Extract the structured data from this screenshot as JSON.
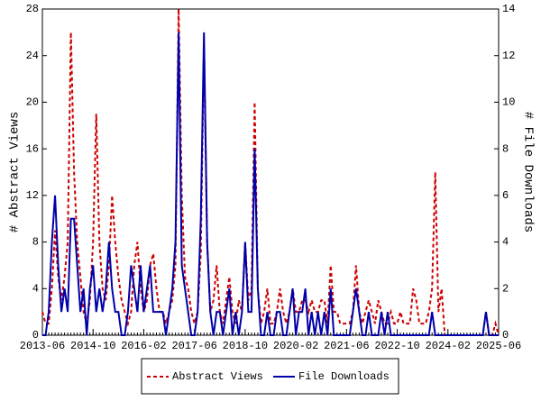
{
  "chart_data": {
    "type": "line",
    "x": [
      "2013-06",
      "2013-07",
      "2013-08",
      "2013-09",
      "2013-10",
      "2013-11",
      "2013-12",
      "2014-01",
      "2014-02",
      "2014-03",
      "2014-04",
      "2014-05",
      "2014-06",
      "2014-07",
      "2014-08",
      "2014-09",
      "2014-10",
      "2014-11",
      "2014-12",
      "2015-01",
      "2015-02",
      "2015-03",
      "2015-04",
      "2015-05",
      "2015-06",
      "2015-07",
      "2015-08",
      "2015-09",
      "2015-10",
      "2015-11",
      "2015-12",
      "2016-01",
      "2016-02",
      "2016-03",
      "2016-04",
      "2016-05",
      "2016-06",
      "2016-07",
      "2016-08",
      "2016-09",
      "2016-10",
      "2016-11",
      "2016-12",
      "2017-01",
      "2017-02",
      "2017-03",
      "2017-04",
      "2017-05",
      "2017-06",
      "2017-07",
      "2017-08",
      "2017-09",
      "2017-10",
      "2017-11",
      "2017-12",
      "2018-01",
      "2018-02",
      "2018-03",
      "2018-04",
      "2018-05",
      "2018-06",
      "2018-07",
      "2018-08",
      "2018-09",
      "2018-10",
      "2018-11",
      "2018-12",
      "2019-01",
      "2019-02",
      "2019-03",
      "2019-04",
      "2019-05",
      "2019-06",
      "2019-07",
      "2019-08",
      "2019-09",
      "2019-10",
      "2019-11",
      "2019-12",
      "2020-01",
      "2020-02",
      "2020-03",
      "2020-04",
      "2020-05",
      "2020-06",
      "2020-07",
      "2020-08",
      "2020-09",
      "2020-10",
      "2020-11",
      "2020-12",
      "2021-01",
      "2021-02",
      "2021-03",
      "2021-04",
      "2021-05",
      "2021-06",
      "2021-07",
      "2021-08",
      "2021-09",
      "2021-10",
      "2021-11",
      "2021-12",
      "2022-01",
      "2022-02",
      "2022-03",
      "2022-04",
      "2022-05",
      "2022-06",
      "2022-07",
      "2022-08",
      "2022-09",
      "2022-10",
      "2022-11",
      "2022-12",
      "2023-01",
      "2023-02",
      "2023-03",
      "2023-04",
      "2023-05",
      "2023-06",
      "2023-07",
      "2023-08",
      "2023-09",
      "2023-10",
      "2023-11",
      "2023-12",
      "2024-01",
      "2024-02",
      "2024-03",
      "2024-04",
      "2024-05",
      "2024-06",
      "2024-07",
      "2024-08",
      "2024-09",
      "2024-10",
      "2024-11",
      "2024-12",
      "2025-01",
      "2025-02",
      "2025-03",
      "2025-04",
      "2025-05",
      "2025-06"
    ],
    "xticks": [
      "2013-06",
      "2014-10",
      "2016-02",
      "2017-06",
      "2018-10",
      "2020-02",
      "2021-06",
      "2022-10",
      "2024-02",
      "2025-06"
    ],
    "ylabel": "# Abstract Views",
    "y2label": "# File Downloads",
    "ylim": [
      0,
      28
    ],
    "yticks": [
      0,
      4,
      8,
      12,
      16,
      20,
      24,
      28
    ],
    "y2lim": [
      0,
      14
    ],
    "y2ticks": [
      0,
      2,
      4,
      6,
      8,
      10,
      12,
      14
    ],
    "series": [
      {
        "name": "Abstract Views",
        "color": "#cc0000",
        "dashed": true,
        "axis": "y",
        "values": [
          2,
          1,
          1,
          4,
          9,
          5,
          3,
          5,
          8,
          26,
          14,
          8,
          5,
          2,
          1,
          3,
          8,
          19,
          8,
          4,
          3,
          6,
          12,
          8,
          5,
          3,
          2,
          1,
          2,
          6,
          8,
          4,
          2,
          3,
          6,
          7,
          4,
          2,
          2,
          1,
          2,
          3,
          6,
          28,
          12,
          5,
          4,
          2,
          1,
          2,
          7,
          25,
          8,
          2,
          3,
          6,
          2,
          1,
          3,
          5,
          2,
          1,
          3,
          2,
          8,
          3,
          4,
          20,
          4,
          1,
          2,
          4,
          1,
          1,
          2,
          4,
          2,
          1,
          2,
          4,
          2,
          2,
          3,
          3,
          2,
          3,
          2,
          2,
          3,
          3,
          1,
          6,
          2,
          2,
          1,
          1,
          1,
          1,
          2,
          6,
          2,
          1,
          2,
          3,
          2,
          1,
          3,
          2,
          1,
          1,
          2,
          1,
          1,
          2,
          1,
          1,
          1,
          4,
          3,
          1,
          1,
          1,
          2,
          4,
          14,
          2,
          4,
          0,
          0,
          0,
          0,
          0,
          0,
          0,
          0,
          0,
          0,
          0,
          0,
          0,
          2,
          0,
          0,
          1,
          0
        ]
      },
      {
        "name": "File Downloads",
        "color": "#0000aa",
        "dashed": false,
        "axis": "y2",
        "values": [
          0,
          0,
          1,
          4,
          6,
          3,
          1,
          2,
          1,
          5,
          5,
          3,
          1,
          2,
          0,
          2,
          3,
          1,
          2,
          1,
          2,
          4,
          2,
          1,
          1,
          0,
          0,
          1,
          3,
          2,
          1,
          3,
          1,
          2,
          3,
          1,
          1,
          1,
          1,
          0,
          1,
          2,
          4,
          13,
          3,
          2,
          1,
          0,
          0,
          1,
          5,
          13,
          4,
          1,
          0,
          1,
          1,
          0,
          1,
          2,
          0,
          1,
          0,
          1,
          4,
          1,
          1,
          8,
          2,
          0,
          0,
          1,
          0,
          0,
          1,
          1,
          0,
          0,
          1,
          2,
          0,
          1,
          1,
          2,
          0,
          1,
          0,
          1,
          0,
          1,
          0,
          2,
          0,
          0,
          0,
          0,
          0,
          0,
          1,
          2,
          1,
          0,
          0,
          1,
          0,
          0,
          0,
          1,
          0,
          1,
          0,
          0,
          0,
          0,
          0,
          0,
          0,
          0,
          0,
          0,
          0,
          0,
          0,
          1,
          0,
          0,
          0,
          0,
          0,
          0,
          0,
          0,
          0,
          0,
          0,
          0,
          0,
          0,
          0,
          0,
          1,
          0,
          0,
          0,
          0
        ]
      }
    ]
  }
}
